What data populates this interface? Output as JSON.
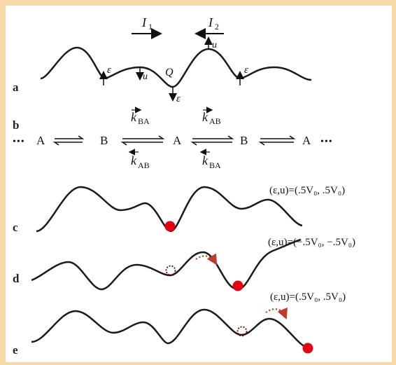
{
  "panels": {
    "a": {
      "label": "a",
      "current_left": "I",
      "current_left_sub": "1",
      "current_right": "I",
      "current_right_sub": "2",
      "epsilon": "ε",
      "u": "u",
      "Q": "Q"
    },
    "b": {
      "label": "b",
      "leading_dots": "•••",
      "trailing_dots": "•••",
      "states": [
        "A",
        "B",
        "A",
        "B",
        "A"
      ],
      "rate_k": "k",
      "rate_top_left_sub": "BA",
      "rate_top_right_sub": "AB",
      "rate_bottom_left_sub": "AB",
      "rate_bottom_right_sub": "BA"
    },
    "c": {
      "label": "c",
      "params": "(ε,u)=(.5V₀, .5V₀)"
    },
    "d": {
      "label": "d",
      "params": "(ε,u)=(−.5V₀, −.5V₀)"
    },
    "e": {
      "label": "e",
      "params": "(ε,u)=(.5V₀, .5V₀)"
    }
  },
  "colors": {
    "background": "#f7d9a8",
    "panel": "#ffffff",
    "curve": "#1a1a1a",
    "particle": "#e60012",
    "trail": "#c0392b"
  }
}
